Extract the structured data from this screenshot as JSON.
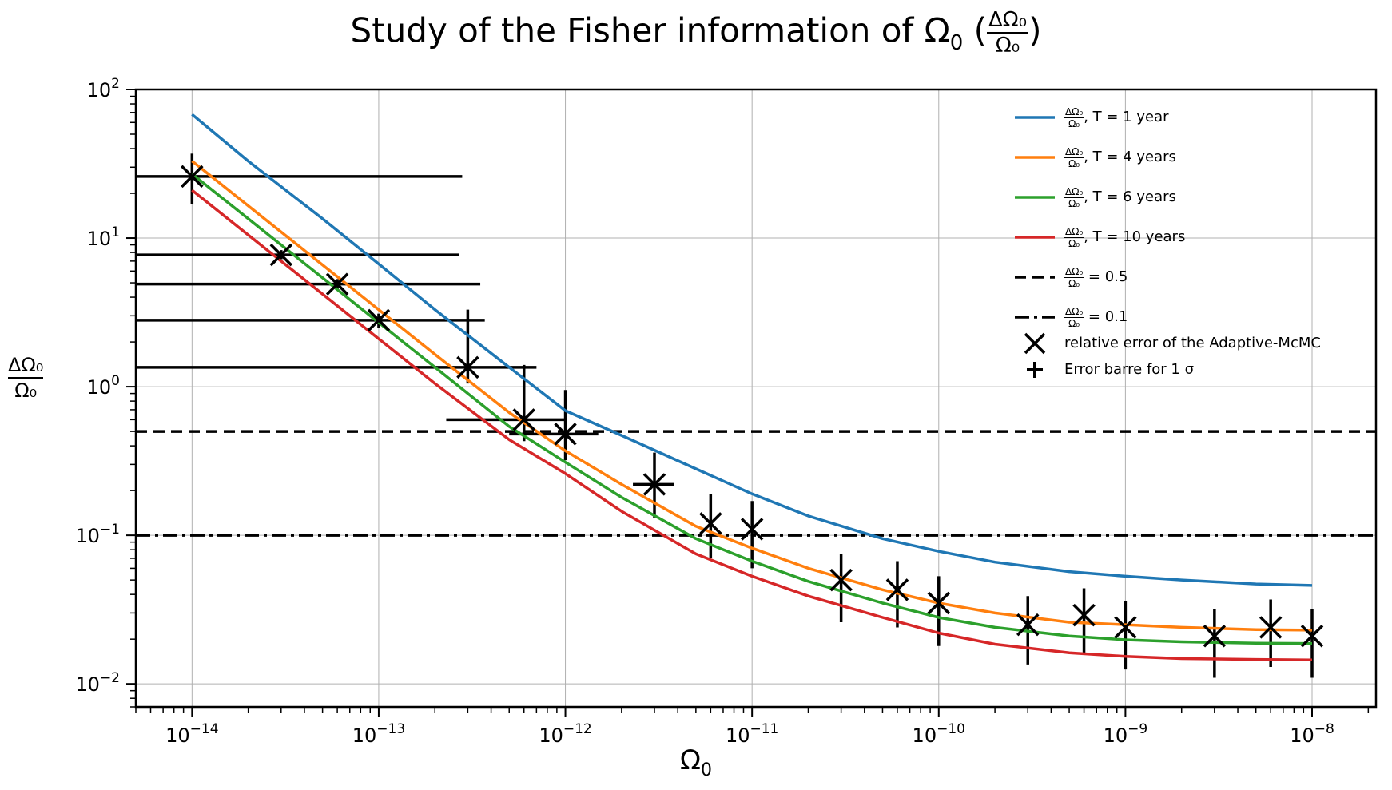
{
  "chart_data": {
    "type": "line",
    "title_text": "Study of the Fisher information of Ω",
    "title_sub": "0",
    "title_frac": {
      "num": "ΔΩ₀",
      "den": "Ω₀"
    },
    "xlabel_main": "Ω",
    "xlabel_sub": "0",
    "ylabel": {
      "num": "ΔΩ₀",
      "den": "Ω₀"
    },
    "x_scale": "log",
    "y_scale": "log",
    "xlim": [
      5e-15,
      2.2e-08
    ],
    "ylim": [
      0.007,
      100
    ],
    "x_ticks": [
      {
        "base": "10",
        "exp": "−14",
        "value": 1e-14
      },
      {
        "base": "10",
        "exp": "−13",
        "value": 1e-13
      },
      {
        "base": "10",
        "exp": "−12",
        "value": 1e-12
      },
      {
        "base": "10",
        "exp": "−11",
        "value": 1e-11
      },
      {
        "base": "10",
        "exp": "−10",
        "value": 1e-10
      },
      {
        "base": "10",
        "exp": "−9",
        "value": 1e-09
      },
      {
        "base": "10",
        "exp": "−8",
        "value": 1e-08
      }
    ],
    "y_ticks": [
      {
        "base": "10",
        "exp": "2",
        "value": 100
      },
      {
        "base": "10",
        "exp": "1",
        "value": 10
      },
      {
        "base": "10",
        "exp": "0",
        "value": 1
      },
      {
        "base": "10",
        "exp": "−1",
        "value": 0.1
      },
      {
        "base": "10",
        "exp": "−2",
        "value": 0.01
      }
    ],
    "grid": true,
    "legend_position": "top-right",
    "series": [
      {
        "name": "T = 1 year",
        "color": "#1f77b4",
        "x": [
          1e-14,
          2e-14,
          5e-14,
          1e-13,
          2e-13,
          5e-13,
          1e-12,
          2e-12,
          5e-12,
          1e-11,
          2e-11,
          5e-11,
          1e-10,
          2e-10,
          5e-10,
          1e-09,
          2e-09,
          5e-09,
          1e-08
        ],
        "y": [
          68,
          33,
          13.5,
          6.7,
          3.3,
          1.35,
          0.69,
          0.47,
          0.28,
          0.19,
          0.135,
          0.095,
          0.078,
          0.066,
          0.057,
          0.053,
          0.05,
          0.047,
          0.046
        ]
      },
      {
        "name": "T = 4 years",
        "color": "#ff7f0e",
        "x": [
          1e-14,
          2e-14,
          5e-14,
          1e-13,
          2e-13,
          5e-13,
          1e-12,
          2e-12,
          5e-12,
          1e-11,
          2e-11,
          5e-11,
          1e-10,
          2e-10,
          5e-10,
          1e-09,
          2e-09,
          5e-09,
          1e-08
        ],
        "y": [
          33,
          16.5,
          6.6,
          3.3,
          1.65,
          0.67,
          0.37,
          0.22,
          0.115,
          0.082,
          0.06,
          0.043,
          0.035,
          0.03,
          0.026,
          0.025,
          0.024,
          0.0232,
          0.023
        ]
      },
      {
        "name": "T = 6 years",
        "color": "#2ca02c",
        "x": [
          1e-14,
          2e-14,
          5e-14,
          1e-13,
          2e-13,
          5e-13,
          1e-12,
          2e-12,
          5e-12,
          1e-11,
          2e-11,
          5e-11,
          1e-10,
          2e-10,
          5e-10,
          1e-09,
          2e-09,
          5e-09,
          1e-08
        ],
        "y": [
          27,
          13.5,
          5.4,
          2.7,
          1.35,
          0.54,
          0.31,
          0.18,
          0.095,
          0.067,
          0.049,
          0.035,
          0.028,
          0.024,
          0.021,
          0.0198,
          0.0192,
          0.0188,
          0.0187
        ]
      },
      {
        "name": "T = 10 years",
        "color": "#d62728",
        "x": [
          1e-14,
          2e-14,
          5e-14,
          1e-13,
          2e-13,
          5e-13,
          1e-12,
          2e-12,
          5e-12,
          1e-11,
          2e-11,
          5e-11,
          1e-10,
          2e-10,
          5e-10,
          1e-09,
          2e-09,
          5e-09,
          1e-08
        ],
        "y": [
          21,
          10.5,
          4.2,
          2.1,
          1.05,
          0.44,
          0.26,
          0.145,
          0.075,
          0.053,
          0.039,
          0.028,
          0.022,
          0.0185,
          0.0162,
          0.0153,
          0.0148,
          0.0146,
          0.0145
        ]
      }
    ],
    "hlines": [
      {
        "name": "= 0.5",
        "value": 0.5,
        "style": "dashed"
      },
      {
        "name": "= 0.1",
        "value": 0.1,
        "style": "dashdot"
      }
    ],
    "markers_name": "relative error of the Adaptive-McMC",
    "errorbar_name": "Error barre for 1 σ",
    "points": [
      {
        "x": 1e-14,
        "y": 26,
        "ylo": 17,
        "yhi": 37,
        "xlo": 5e-15,
        "xhi": 2.8e-13
      },
      {
        "x": 3e-14,
        "y": 7.7,
        "ylo": 7.2,
        "yhi": 8.3,
        "xlo": 5e-15,
        "xhi": 2.7e-13
      },
      {
        "x": 6e-14,
        "y": 4.9,
        "ylo": 4.5,
        "yhi": 5.3,
        "xlo": 5e-15,
        "xhi": 3.5e-13
      },
      {
        "x": 1e-13,
        "y": 2.8,
        "ylo": 2.5,
        "yhi": 3.1,
        "xlo": 5e-15,
        "xhi": 3.7e-13
      },
      {
        "x": 3e-13,
        "y": 1.35,
        "ylo": 1.05,
        "yhi": 3.3,
        "xlo": 5e-15,
        "xhi": 7e-13
      },
      {
        "x": 6e-13,
        "y": 0.6,
        "ylo": 0.43,
        "yhi": 1.4,
        "xlo": 2.3e-13,
        "xhi": 1e-12
      },
      {
        "x": 1e-12,
        "y": 0.48,
        "ylo": 0.32,
        "yhi": 0.95,
        "xlo": 5e-13,
        "xhi": 1.5e-12
      },
      {
        "x": 3e-12,
        "y": 0.22,
        "ylo": 0.13,
        "yhi": 0.36,
        "xlo": 2.3e-12,
        "xhi": 3.8e-12
      },
      {
        "x": 6e-12,
        "y": 0.12,
        "ylo": 0.07,
        "yhi": 0.19,
        "xlo": 6e-12,
        "xhi": 6e-12
      },
      {
        "x": 1e-11,
        "y": 0.11,
        "ylo": 0.06,
        "yhi": 0.17,
        "xlo": 1e-11,
        "xhi": 1e-11
      },
      {
        "x": 3e-11,
        "y": 0.05,
        "ylo": 0.026,
        "yhi": 0.075,
        "xlo": 3e-11,
        "xhi": 3e-11
      },
      {
        "x": 6e-11,
        "y": 0.043,
        "ylo": 0.024,
        "yhi": 0.067,
        "xlo": 6e-11,
        "xhi": 6e-11
      },
      {
        "x": 1e-10,
        "y": 0.035,
        "ylo": 0.018,
        "yhi": 0.053,
        "xlo": 1e-10,
        "xhi": 1e-10
      },
      {
        "x": 3e-10,
        "y": 0.025,
        "ylo": 0.0135,
        "yhi": 0.039,
        "xlo": 3e-10,
        "xhi": 3e-10
      },
      {
        "x": 6e-10,
        "y": 0.029,
        "ylo": 0.016,
        "yhi": 0.044,
        "xlo": 6e-10,
        "xhi": 6e-10
      },
      {
        "x": 1e-09,
        "y": 0.024,
        "ylo": 0.0125,
        "yhi": 0.036,
        "xlo": 1e-09,
        "xhi": 1e-09
      },
      {
        "x": 3e-09,
        "y": 0.021,
        "ylo": 0.011,
        "yhi": 0.032,
        "xlo": 3e-09,
        "xhi": 3e-09
      },
      {
        "x": 6e-09,
        "y": 0.024,
        "ylo": 0.013,
        "yhi": 0.037,
        "xlo": 6e-09,
        "xhi": 6e-09
      },
      {
        "x": 1e-08,
        "y": 0.021,
        "ylo": 0.011,
        "yhi": 0.032,
        "xlo": 1e-08,
        "xhi": 1e-08
      }
    ],
    "legend": [
      {
        "kind": "line",
        "frac_num": "ΔΩ₀",
        "frac_den": "Ω₀",
        "text": ", T = 1 year",
        "color": "#1f77b4"
      },
      {
        "kind": "line",
        "frac_num": "ΔΩ₀",
        "frac_den": "Ω₀",
        "text": ", T = 4 years",
        "color": "#ff7f0e"
      },
      {
        "kind": "line",
        "frac_num": "ΔΩ₀",
        "frac_den": "Ω₀",
        "text": ", T = 6 years",
        "color": "#2ca02c"
      },
      {
        "kind": "line",
        "frac_num": "ΔΩ₀",
        "frac_den": "Ω₀",
        "text": ", T = 10 years",
        "color": "#d62728"
      },
      {
        "kind": "dashed",
        "frac_num": "ΔΩ₀",
        "frac_den": "Ω₀",
        "text": " = 0.5",
        "color": "#000000"
      },
      {
        "kind": "dashdot",
        "frac_num": "ΔΩ₀",
        "frac_den": "Ω₀",
        "text": " = 0.1",
        "color": "#000000"
      },
      {
        "kind": "x",
        "frac_num": "",
        "frac_den": "",
        "text": "relative error of the Adaptive-McMC",
        "color": "#000000"
      },
      {
        "kind": "plus",
        "frac_num": "",
        "frac_den": "",
        "text": "Error barre for 1 σ",
        "color": "#000000"
      }
    ]
  }
}
